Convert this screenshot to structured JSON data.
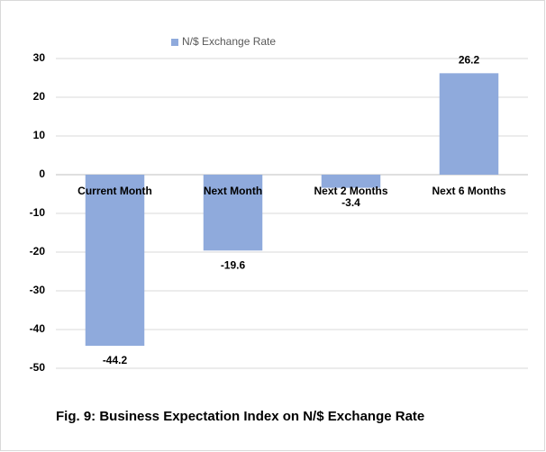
{
  "chart_data": {
    "type": "bar",
    "caption": "Fig. 9: Business Expectation Index on N/$ Exchange  Rate",
    "categories": [
      "Current Month",
      "Next Month",
      "Next 2 Months",
      "Next 6 Months"
    ],
    "series": [
      {
        "name": "N/$ Exchange Rate",
        "color": "#8faadc",
        "values": [
          -44.2,
          -19.6,
          -3.4,
          26.2
        ]
      }
    ],
    "ylim": [
      -50,
      30
    ],
    "yticks": [
      -50,
      -40,
      -30,
      -20,
      -10,
      0,
      10,
      20,
      30
    ],
    "grid": true
  }
}
